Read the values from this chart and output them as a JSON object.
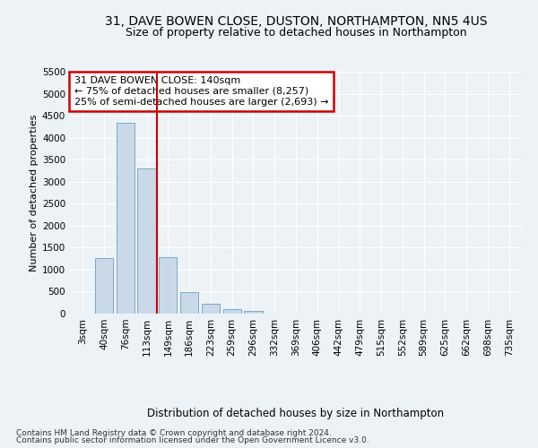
{
  "title_line1": "31, DAVE BOWEN CLOSE, DUSTON, NORTHAMPTON, NN5 4US",
  "title_line2": "Size of property relative to detached houses in Northampton",
  "xlabel": "Distribution of detached houses by size in Northampton",
  "ylabel": "Number of detached properties",
  "bar_labels": [
    "3sqm",
    "40sqm",
    "76sqm",
    "113sqm",
    "149sqm",
    "186sqm",
    "223sqm",
    "259sqm",
    "296sqm",
    "332sqm",
    "369sqm",
    "406sqm",
    "442sqm",
    "479sqm",
    "515sqm",
    "552sqm",
    "589sqm",
    "625sqm",
    "662sqm",
    "698sqm",
    "735sqm"
  ],
  "bar_values": [
    0,
    1260,
    4330,
    3300,
    1280,
    490,
    215,
    95,
    65,
    0,
    0,
    0,
    0,
    0,
    0,
    0,
    0,
    0,
    0,
    0,
    0
  ],
  "bar_color": "#c9d9e8",
  "bar_edgecolor": "#7aaac8",
  "vline_x_idx": 3,
  "vline_color": "#cc0000",
  "ylim": [
    0,
    5500
  ],
  "yticks": [
    0,
    500,
    1000,
    1500,
    2000,
    2500,
    3000,
    3500,
    4000,
    4500,
    5000,
    5500
  ],
  "annotation_line1": "31 DAVE BOWEN CLOSE: 140sqm",
  "annotation_line2": "← 75% of detached houses are smaller (8,257)",
  "annotation_line3": "25% of semi-detached houses are larger (2,693) →",
  "annotation_box_color": "#cc0000",
  "footer_line1": "Contains HM Land Registry data © Crown copyright and database right 2024.",
  "footer_line2": "Contains public sector information licensed under the Open Government Licence v3.0.",
  "bg_color": "#edf2f7",
  "plot_bg_color": "#edf2f7",
  "grid_color": "#ffffff",
  "title1_fontsize": 10,
  "title2_fontsize": 9,
  "tick_fontsize": 7.5,
  "ylabel_fontsize": 8,
  "xlabel_fontsize": 8.5,
  "annotation_fontsize": 8,
  "footer_fontsize": 6.5
}
